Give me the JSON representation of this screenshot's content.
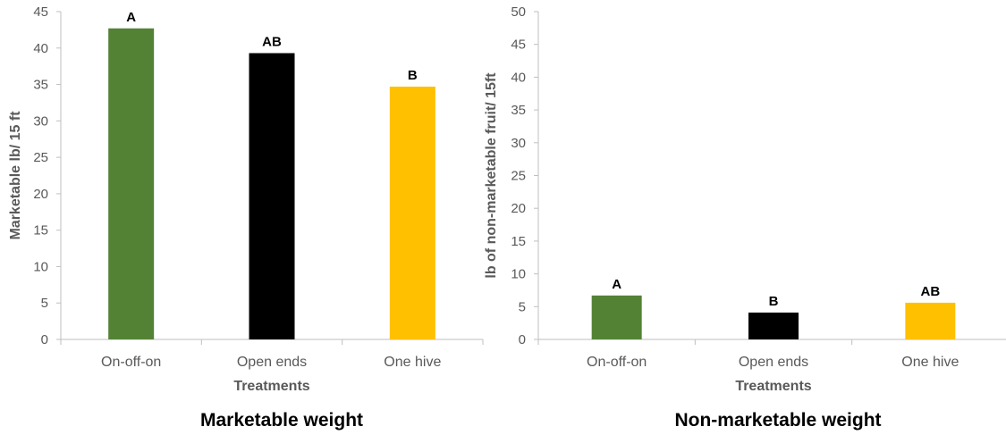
{
  "chart_data": [
    {
      "type": "bar",
      "title": "Marketable weight",
      "xlabel": "Treatments",
      "ylabel": "Marketable lb/ 15 ft",
      "categories": [
        "On-off-on",
        "Open ends",
        "One hive"
      ],
      "values": [
        42.7,
        39.3,
        34.7
      ],
      "labels": [
        "A",
        "AB",
        "B"
      ],
      "colors": [
        "#548235",
        "#000000",
        "#FFC000"
      ],
      "ylim": [
        0,
        45
      ],
      "yticks": [
        0,
        5,
        10,
        15,
        20,
        25,
        30,
        35,
        40,
        45
      ],
      "grid": false
    },
    {
      "type": "bar",
      "title": "Non-marketable weight",
      "xlabel": "Treatments",
      "ylabel": "lb of non-marketable fruit/ 15ft",
      "categories": [
        "On-off-on",
        "Open ends",
        "One hive"
      ],
      "values": [
        6.7,
        4.1,
        5.6
      ],
      "labels": [
        "A",
        "B",
        "AB"
      ],
      "colors": [
        "#548235",
        "#000000",
        "#FFC000"
      ],
      "ylim": [
        0,
        50
      ],
      "yticks": [
        0,
        5,
        10,
        15,
        20,
        25,
        30,
        35,
        40,
        45,
        50
      ],
      "grid": false
    }
  ]
}
